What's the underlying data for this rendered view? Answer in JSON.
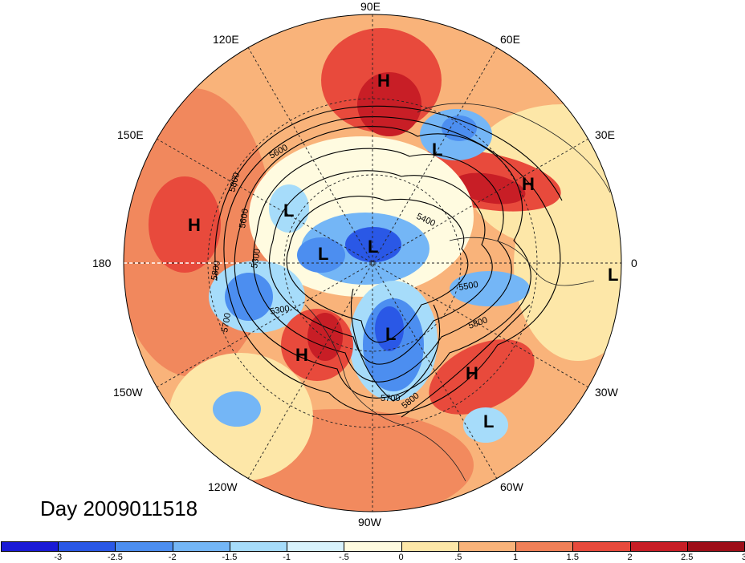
{
  "map": {
    "title": "Day 2009011518",
    "longitude_labels": {
      "top": "90E",
      "top_right": "60E",
      "right_upper": "30E",
      "right": "0",
      "right_lower": "30W",
      "bottom_right": "60W",
      "bottom": "90W",
      "bottom_left": "120W",
      "left_lower": "150W",
      "left": "180",
      "left_upper": "150E",
      "top_left": "120E"
    },
    "pressure_systems": [
      {
        "label": "H",
        "name": "high-siberia"
      },
      {
        "label": "L",
        "name": "low-scandinavia"
      },
      {
        "label": "H",
        "name": "high-europe"
      },
      {
        "label": "H",
        "name": "high-pacific"
      },
      {
        "label": "L",
        "name": "low-east-siberia"
      },
      {
        "label": "L",
        "name": "low-arctic-1"
      },
      {
        "label": "L",
        "name": "low-arctic-2"
      },
      {
        "label": "L",
        "name": "low-atlantic-edge"
      },
      {
        "label": "L",
        "name": "low-canada"
      },
      {
        "label": "H",
        "name": "high-west-america"
      },
      {
        "label": "H",
        "name": "high-atlantic"
      },
      {
        "label": "L",
        "name": "low-subtropical-atlantic"
      }
    ],
    "contour_labels": [
      "5600",
      "5800",
      "5600",
      "5300",
      "5800",
      "5700",
      "5300",
      "5400",
      "5500",
      "5800",
      "5700",
      "5800"
    ]
  },
  "colorbar": {
    "colors": [
      "#1a1ad6",
      "#2a58e6",
      "#4c8ef0",
      "#74b6f6",
      "#a6dcfa",
      "#d8f2fc",
      "#fffbe0",
      "#fde7a8",
      "#f9b37a",
      "#f08058",
      "#e84a3c",
      "#c81e26",
      "#9e0e18"
    ],
    "ticks": [
      "-3",
      "-2.5",
      "-2",
      "-1.5",
      "-1",
      "-.5",
      "0",
      ".5",
      "1",
      "1.5",
      "2",
      "2.5",
      "3"
    ]
  }
}
